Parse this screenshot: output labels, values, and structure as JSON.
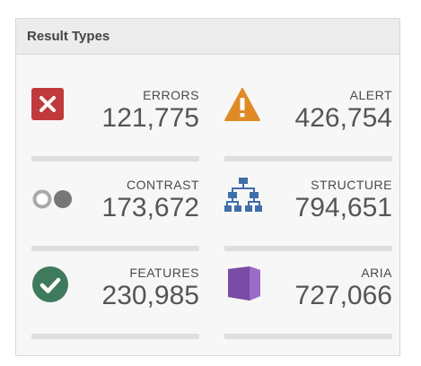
{
  "panel": {
    "title": "Result Types"
  },
  "items": [
    {
      "label": "ERRORS",
      "value": "121,775",
      "icon": "error-x-icon",
      "color": "#c0393b"
    },
    {
      "label": "ALERT",
      "value": "426,754",
      "icon": "alert-triangle-icon",
      "color": "#e08a26"
    },
    {
      "label": "CONTRAST",
      "value": "173,672",
      "icon": "contrast-toggle-icon",
      "color": "#777777"
    },
    {
      "label": "STRUCTURE",
      "value": "794,651",
      "icon": "structure-hierarchy-icon",
      "color": "#3f6eab"
    },
    {
      "label": "FEATURES",
      "value": "230,985",
      "icon": "features-check-icon",
      "color": "#3f7a5d"
    },
    {
      "label": "ARIA",
      "value": "727,066",
      "icon": "aria-cube-icon",
      "color": "#7b4fa6"
    }
  ]
}
